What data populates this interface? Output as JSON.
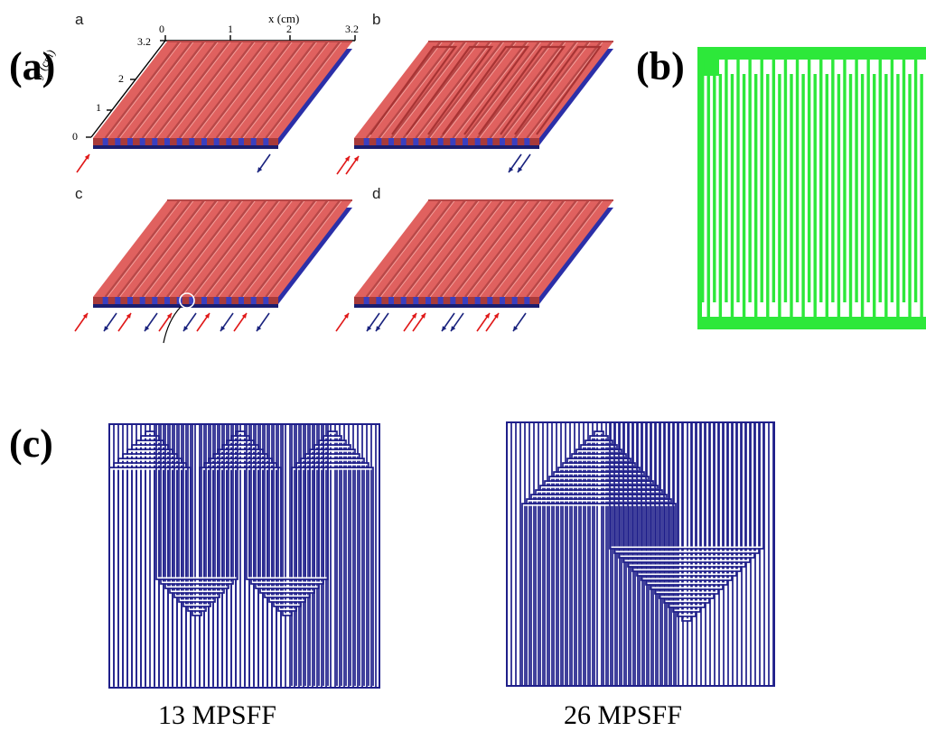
{
  "labels": {
    "panel_a": "(a)",
    "panel_b": "(b)",
    "panel_c": "(c)",
    "sub_a": "a",
    "sub_b": "b",
    "sub_c": "c",
    "sub_d": "d"
  },
  "axes": {
    "x_title": "x (cm)",
    "y_title": "y (cm)",
    "x_ticks": [
      "0",
      "1",
      "2",
      "3.2"
    ],
    "y_ticks": [
      "0",
      "1",
      "2",
      "3.2"
    ]
  },
  "captions": {
    "left": "13 MPSFF",
    "right": "26 MPSFF"
  },
  "colors": {
    "channel_red": "#e0615f",
    "channel_red_dark": "#a83a3a",
    "plate_blue": "#2b2fa8",
    "inlet_arrow": "#e01818",
    "outlet_arrow": "#1a237e",
    "pcb_green": "#2de83a",
    "spiral_blue": "#1f1f8a"
  }
}
